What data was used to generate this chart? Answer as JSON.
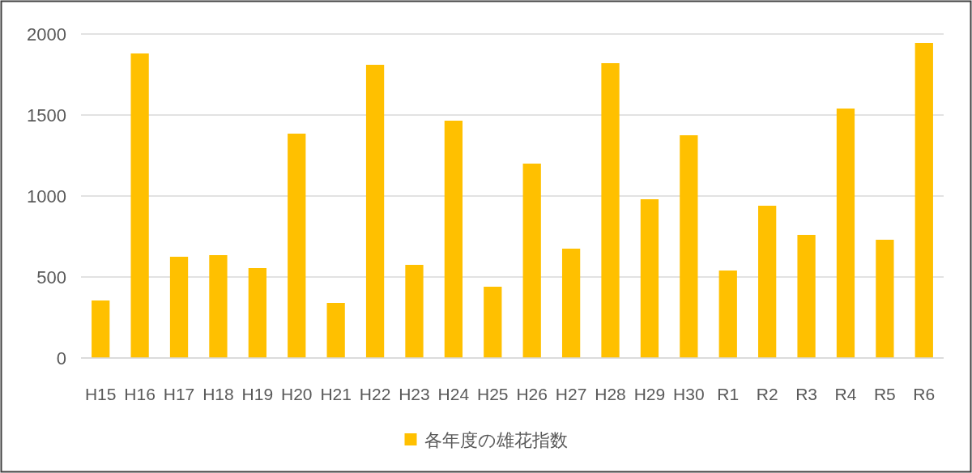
{
  "chart_data": {
    "type": "bar",
    "categories": [
      "H15",
      "H16",
      "H17",
      "H18",
      "H19",
      "H20",
      "H21",
      "H22",
      "H23",
      "H24",
      "H25",
      "H26",
      "H27",
      "H28",
      "H29",
      "H30",
      "R1",
      "R2",
      "R3",
      "R4",
      "R5",
      "R6"
    ],
    "series": [
      {
        "name": "各年度の雄花指数",
        "color": "#ffc000",
        "values": [
          355,
          1880,
          625,
          635,
          555,
          1385,
          340,
          1810,
          575,
          1465,
          440,
          1200,
          675,
          1820,
          980,
          1375,
          540,
          940,
          760,
          1540,
          730,
          1945
        ]
      }
    ],
    "ylim": [
      0,
      2000
    ],
    "yticks": [
      0,
      500,
      1000,
      1500,
      2000
    ],
    "grid": "y",
    "legend": "bottom"
  }
}
